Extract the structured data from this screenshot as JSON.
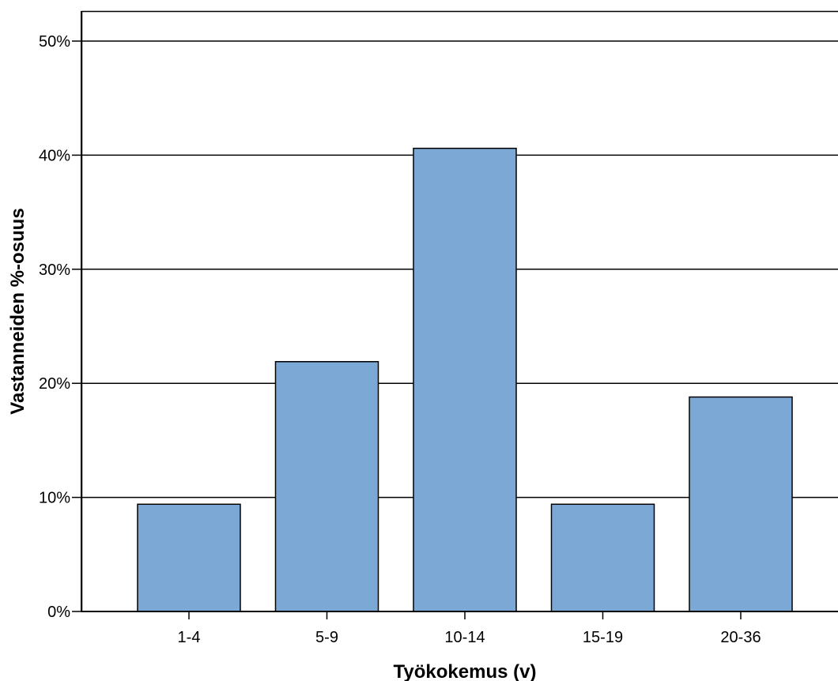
{
  "chart_data": {
    "type": "bar",
    "xlabel": "Työkokemus (v)",
    "ylabel": "Vastanneiden %-osuus",
    "categories": [
      "1-4",
      "5-9",
      "10-14",
      "15-19",
      "20-36"
    ],
    "values": [
      9.4,
      21.9,
      40.6,
      9.4,
      18.8
    ],
    "ylim": [
      0,
      50
    ],
    "yticks": [
      {
        "value": 0,
        "label": "0%"
      },
      {
        "value": 10,
        "label": "10%"
      },
      {
        "value": 20,
        "label": "20%"
      },
      {
        "value": 30,
        "label": "30%"
      },
      {
        "value": 40,
        "label": "40%"
      },
      {
        "value": 50,
        "label": "50%"
      }
    ],
    "grid": true,
    "bar_color": "#7BA8D5"
  }
}
